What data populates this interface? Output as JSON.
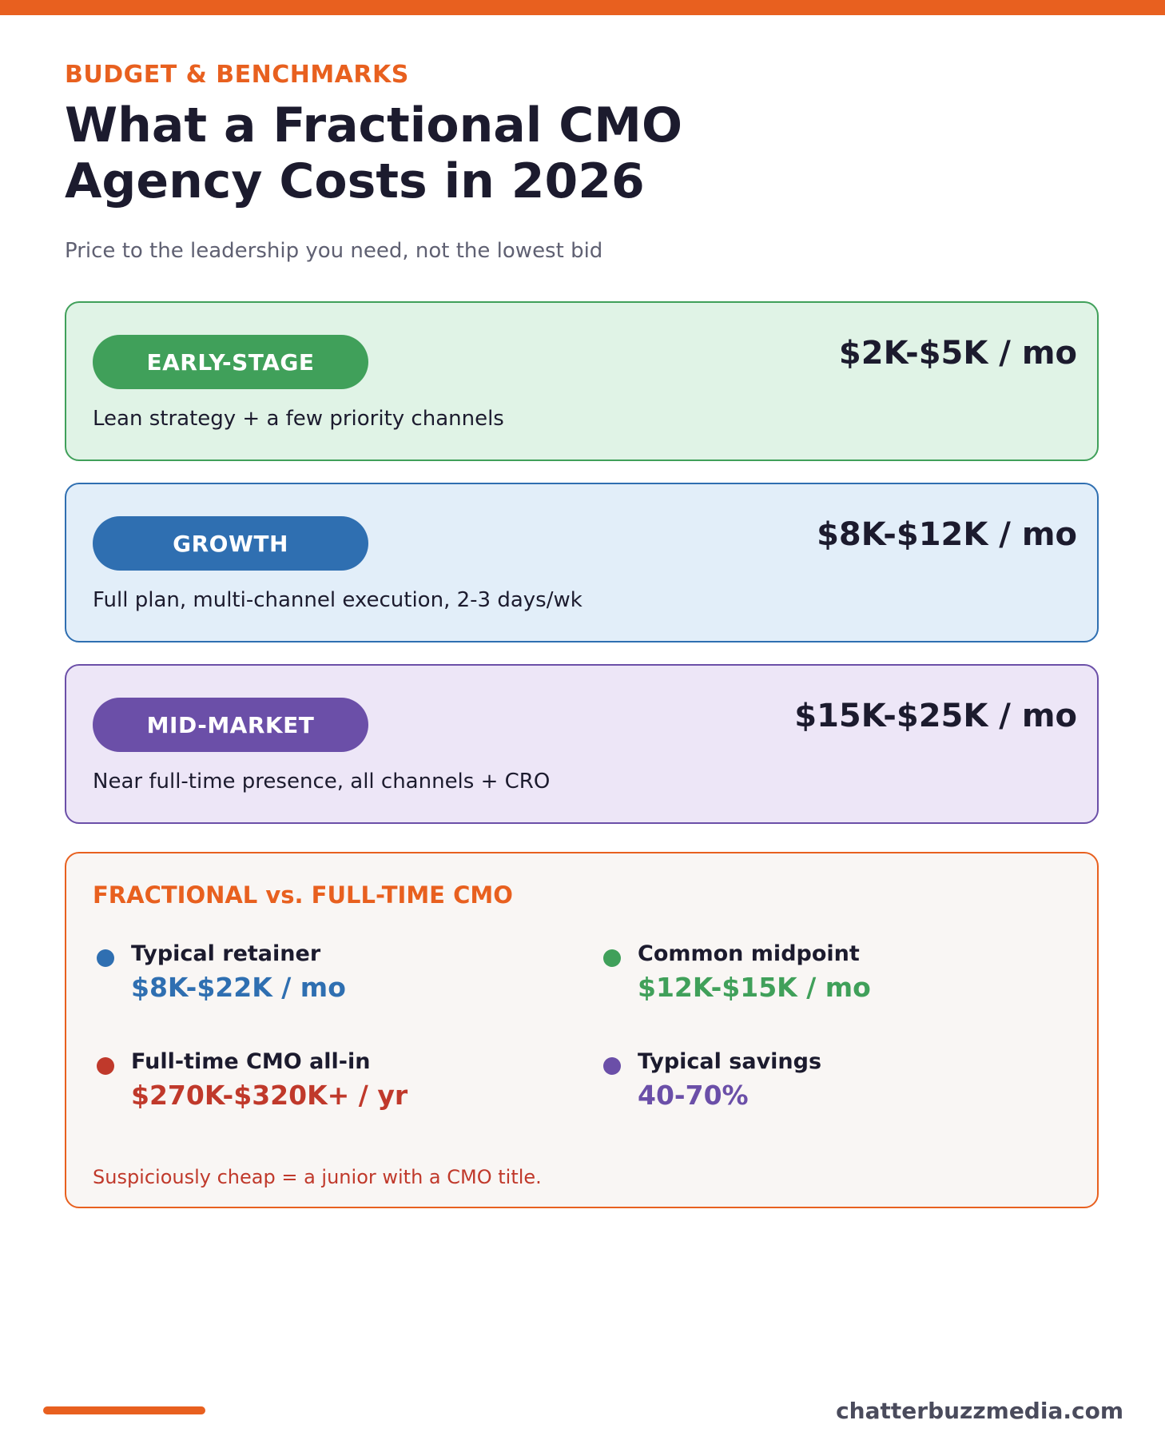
{
  "eyebrow": "BUDGET & BENCHMARKS",
  "title_line1": "What a Fractional CMO",
  "title_line2": "Agency Costs in 2026",
  "subtitle": "Price to the leadership you need, not the lowest bid",
  "tiers": [
    {
      "label": "EARLY-STAGE",
      "price": "$2K-$5K / mo",
      "description": "Lean strategy + a few priority channels",
      "accent": "#40a05a",
      "background": "#e0f3e6"
    },
    {
      "label": "GROWTH",
      "price": "$8K-$12K / mo",
      "description": "Full plan, multi-channel execution, 2-3 days/wk",
      "accent": "#2f6fb1",
      "background": "#e2eef9"
    },
    {
      "label": "MID-MARKET",
      "price": "$15K-$25K / mo",
      "description": "Near full-time presence, all channels + CRO",
      "accent": "#6b4fa8",
      "background": "#ede6f7"
    }
  ],
  "comparison": {
    "title": "FRACTIONAL vs. FULL-TIME CMO",
    "stats": [
      {
        "label": "Typical retainer",
        "value": "$8K-$22K / mo",
        "color": "#2f6fb1"
      },
      {
        "label": "Common midpoint",
        "value": "$12K-$15K / mo",
        "color": "#40a05a"
      },
      {
        "label": "Full-time CMO all-in",
        "value": "$270K-$320K+ / yr",
        "color": "#c0392b"
      },
      {
        "label": "Typical savings",
        "value": "40-70%",
        "color": "#6b4fa8"
      }
    ],
    "footnote": "Suspiciously cheap = a junior with a CMO title."
  },
  "footer": {
    "domain": "chatterbuzzmedia.com"
  },
  "colors": {
    "brand_orange": "#e8601f",
    "heading_dark": "#1c1b2e",
    "muted_text": "#5f6072"
  }
}
